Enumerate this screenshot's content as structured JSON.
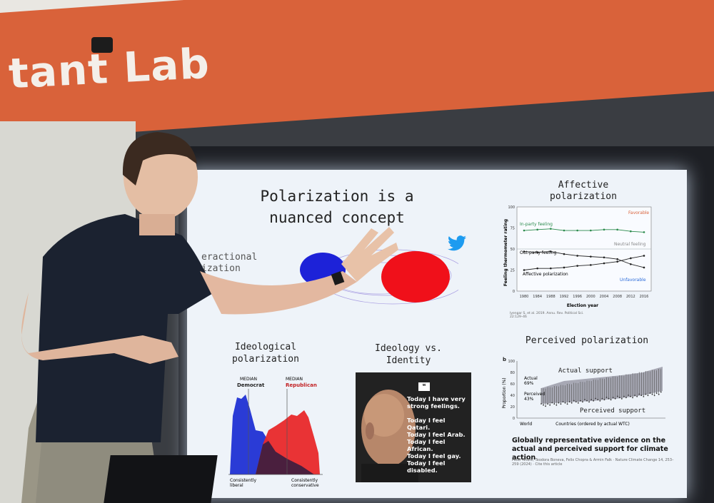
{
  "wall": {
    "logo_text": "tant Lab"
  },
  "slide": {
    "title": "Polarization is a\nnuanced concept",
    "interactional_label": "eractional\nization",
    "affective": {
      "title": "Affective\npolarization",
      "in_party": "In-party feeling",
      "out_party": "Out-party feeling",
      "affective_label": "Affective polarization",
      "favorable": "Favorable",
      "unfavorable": "Unfavorable",
      "neutral": "Neutral feeling",
      "y_axis_label": "Feeling thermometer rating",
      "x_axis_label": "Election year",
      "y_ticks": [
        "100",
        "75",
        "50",
        "25",
        "0"
      ],
      "x_ticks": [
        "1980",
        "1984",
        "1988",
        "1992",
        "1996",
        "2000",
        "2004",
        "2008",
        "2012",
        "2016"
      ],
      "citation": "Iyengar S, et al. 2019. Annu. Rev. Political Sci. 22:129–46"
    },
    "ideological": {
      "title": "Ideological\npolarization",
      "median_dem_top": "MEDIAN",
      "median_dem": "Democrat",
      "median_rep_top": "MEDIAN",
      "median_rep": "Republican",
      "left_label": "Consistently\nliberal",
      "right_label": "Consistently\nconservative"
    },
    "identity": {
      "title": "Ideology vs.\nIdentity",
      "quote_mark": "❝",
      "poster_text": "Today I have very\nstrong feelings.\n\nToday I feel Qatari.\nToday I feel Arab.\nToday I feel African.\nToday I feel gay.\nToday I feel disabled.\n\nToday I feel (like) a\nmigrant worker."
    },
    "perceived": {
      "title": "Perceived polarization",
      "panel_letter": "b",
      "actual_support": "Actual support",
      "perceived_support": "Perceived support",
      "y_label": "Proportion (%)",
      "x_label": "Countries (ordered by actual WTC)",
      "world": "World",
      "actual_note": "Actual\n69%",
      "perceived_note": "Perceived\n43%",
      "y_ticks": [
        "100",
        "80",
        "60",
        "40",
        "20",
        "0"
      ],
      "caption": "Globally representative evidence on the actual and perceived support for climate action",
      "refs": "Peter Andre, Teodora Boneva, Felix Chopra & Armin Falk · Nature Climate Change 14, 253–259 (2024) · Cite this article"
    }
  },
  "chart_data": {
    "type": "line",
    "x": [
      1980,
      1984,
      1988,
      1992,
      1996,
      2000,
      2004,
      2008,
      2012,
      2016
    ],
    "series": [
      {
        "name": "In-party feeling",
        "values": [
          72,
          73,
          74,
          72,
          72,
          72,
          73,
          73,
          71,
          70
        ]
      },
      {
        "name": "Out-party feeling",
        "values": [
          47,
          46,
          47,
          44,
          42,
          41,
          40,
          38,
          32,
          28
        ]
      },
      {
        "name": "Affective polarization",
        "values": [
          25,
          27,
          27,
          28,
          30,
          31,
          33,
          35,
          39,
          42
        ]
      }
    ],
    "ylim": [
      0,
      100
    ],
    "title": "Affective polarization",
    "xlabel": "Election year",
    "ylabel": "Feeling thermometer rating"
  },
  "colors": {
    "orange": "#d9623a",
    "dem_blue": "#2a3bd6",
    "rep_red": "#e8282a",
    "twitter": "#1d9bf0"
  }
}
